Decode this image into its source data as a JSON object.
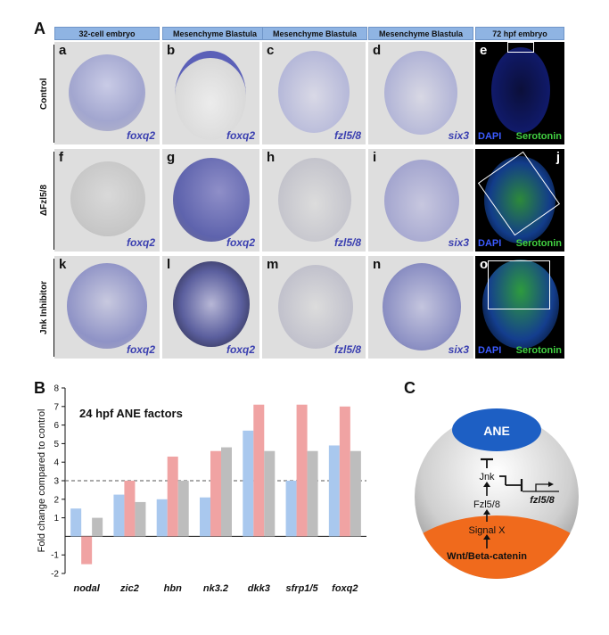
{
  "figure": {
    "panel_A_label": "A",
    "panel_B_label": "B",
    "panel_C_label": "C"
  },
  "panel_a": {
    "column_headers": [
      "32-cell embryo",
      "Mesenchyme Blastula",
      "Mesenchyme Blastula",
      "Mesenchyme Blastula",
      "72 hpf embryo"
    ],
    "row_labels": [
      "Control",
      "ΔFzl5/8",
      "Jnk Inhibitor"
    ],
    "rows": [
      {
        "cells": [
          {
            "letter": "a",
            "gene": "foxq2"
          },
          {
            "letter": "b",
            "gene": "foxq2"
          },
          {
            "letter": "c",
            "gene": "fzl5/8"
          },
          {
            "letter": "d",
            "gene": "six3"
          },
          {
            "letter": "e",
            "stain1": "DAPI",
            "stain2": "Serotonin"
          }
        ]
      },
      {
        "cells": [
          {
            "letter": "f",
            "gene": "foxq2"
          },
          {
            "letter": "g",
            "gene": "foxq2"
          },
          {
            "letter": "h",
            "gene": "fzl5/8"
          },
          {
            "letter": "i",
            "gene": "six3"
          },
          {
            "letter": "j",
            "stain1": "DAPI",
            "stain2": "Serotonin"
          }
        ]
      },
      {
        "cells": [
          {
            "letter": "k",
            "gene": "foxq2"
          },
          {
            "letter": "l",
            "gene": "foxq2"
          },
          {
            "letter": "m",
            "gene": "fzl5/8"
          },
          {
            "letter": "n",
            "gene": "six3"
          },
          {
            "letter": "o",
            "stain1": "DAPI",
            "stain2": "Serotonin"
          }
        ]
      }
    ]
  },
  "chart_data": {
    "type": "bar",
    "title": "24 hpf ANE factors",
    "ylabel": "Fold change compared to control",
    "xlabel": "",
    "categories": [
      "nodal",
      "zic2",
      "hbn",
      "nk3.2",
      "dkk3",
      "sfrp1/5",
      "foxq2"
    ],
    "series": [
      {
        "color": "#a9c8ee",
        "values": [
          1.5,
          2.25,
          2.0,
          2.1,
          5.7,
          3.0,
          4.9
        ]
      },
      {
        "color": "#f0a3a3",
        "values": [
          -1.5,
          3.0,
          4.3,
          4.6,
          7.1,
          7.1,
          7.0
        ]
      },
      {
        "color": "#bdbdbd",
        "values": [
          1.0,
          1.85,
          3.0,
          4.8,
          4.6,
          4.6,
          4.6
        ]
      }
    ],
    "ylim": [
      -2,
      8
    ],
    "yticks": [
      -2,
      -1,
      1,
      2,
      3,
      4,
      5,
      6,
      7,
      8
    ],
    "reference_line": 3,
    "grid": false
  },
  "panel_c": {
    "ane": "ANE",
    "jnk": "Jnk",
    "fzl": "Fzl5/8",
    "signal": "Signal X",
    "wnt": "Wnt/Beta-catenin",
    "gene": "fzl5/8"
  }
}
